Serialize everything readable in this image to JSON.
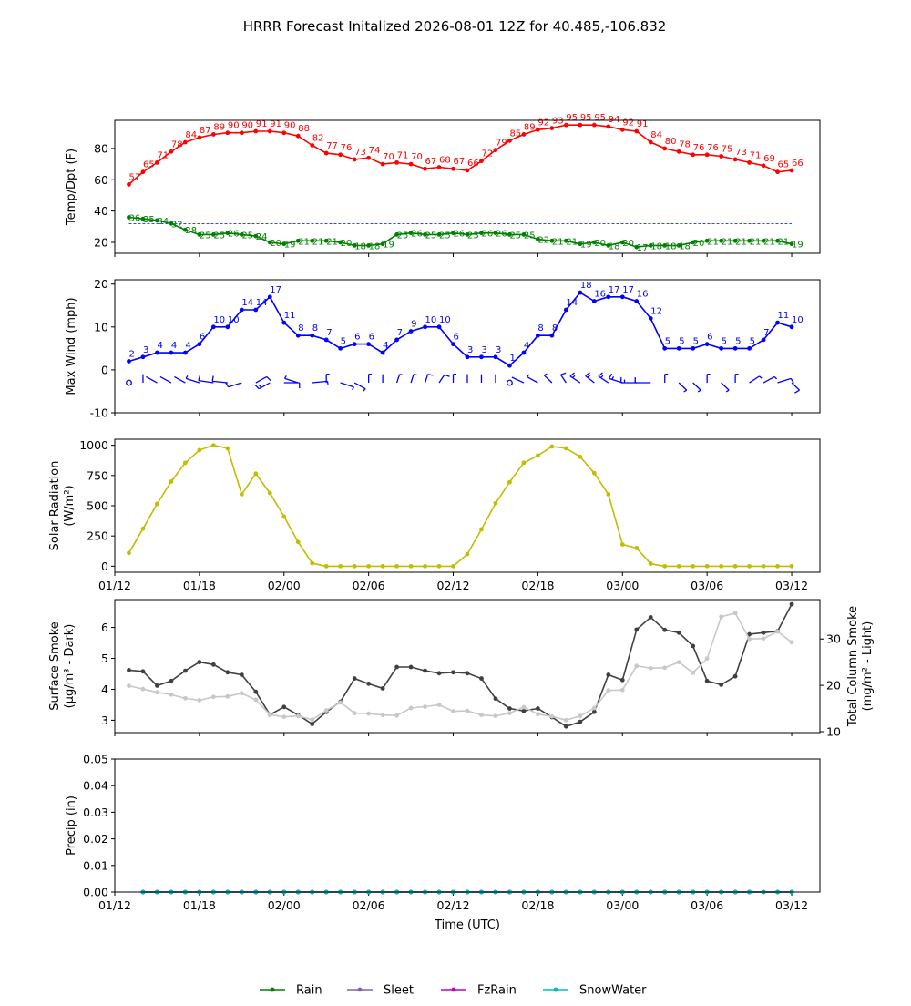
{
  "figure": {
    "title": "HRRR Forecast Initalized 2026-08-01 12Z for 40.485,-106.832"
  },
  "colors": {
    "temp": "#ff0000",
    "dewpoint": "#008000",
    "freeze_line": "#0000ff",
    "wind": "#0000ff",
    "solar": "#bfbf00",
    "smoke_dark": "#404040",
    "smoke_light": "#c8c8c8",
    "rain": "#008000",
    "sleet": "#8064a2",
    "fzrain": "#bf00bf",
    "snow": "#00bfbf"
  },
  "chart_data": [
    {
      "type": "line",
      "title": "",
      "xlabel": "",
      "ylabel": "Temp/Dpt (F)",
      "xlim": [
        0,
        50
      ],
      "ylim": [
        13,
        98
      ],
      "yticks": [
        20,
        40,
        60,
        80
      ],
      "reference_line": {
        "y": 32
      },
      "x": [
        1,
        2,
        3,
        4,
        5,
        6,
        7,
        8,
        9,
        10,
        11,
        12,
        13,
        14,
        15,
        16,
        17,
        18,
        19,
        20,
        21,
        22,
        23,
        24,
        25,
        26,
        27,
        28,
        29,
        30,
        31,
        32,
        33,
        34,
        35,
        36,
        37,
        38,
        39,
        40,
        41,
        42,
        43,
        44,
        45,
        46,
        47,
        48
      ],
      "series": [
        {
          "key": "temp",
          "values": [
            57,
            65,
            71,
            78,
            84,
            87,
            89,
            90,
            90,
            91,
            91,
            90,
            88,
            82,
            77,
            76,
            73,
            74,
            70,
            71,
            70,
            67,
            68,
            67,
            66,
            72,
            79,
            85,
            89,
            92,
            93,
            95,
            95,
            95,
            94,
            92,
            91,
            84,
            80,
            78,
            76,
            76,
            75,
            73,
            71,
            69,
            65,
            66
          ]
        },
        {
          "key": "dewpoint",
          "values": [
            36,
            35,
            34,
            32,
            28,
            25,
            25,
            26,
            25,
            24,
            20,
            19,
            21,
            21,
            21,
            20,
            18,
            18,
            19,
            25,
            26,
            25,
            25,
            26,
            25,
            26,
            26,
            25,
            25,
            22,
            21,
            21,
            19,
            20,
            18,
            20,
            17,
            18,
            18,
            18,
            20,
            21,
            21,
            21,
            21,
            21,
            21,
            19
          ]
        }
      ]
    },
    {
      "type": "line",
      "title": "",
      "xlabel": "",
      "ylabel": "Max Wind (mph)",
      "xlim": [
        0,
        50
      ],
      "ylim": [
        -10,
        21
      ],
      "yticks": [
        -10,
        0,
        10,
        20
      ],
      "x": [
        1,
        2,
        3,
        4,
        5,
        6,
        7,
        8,
        9,
        10,
        11,
        12,
        13,
        14,
        15,
        16,
        17,
        18,
        19,
        20,
        21,
        22,
        23,
        24,
        25,
        26,
        27,
        28,
        29,
        30,
        31,
        32,
        33,
        34,
        35,
        36,
        37,
        38,
        39,
        40,
        41,
        42,
        43,
        44,
        45,
        46,
        47,
        48
      ],
      "series": [
        {
          "key": "wind",
          "values": [
            2,
            3,
            4,
            4,
            4,
            6,
            10,
            10,
            14,
            14,
            17,
            11,
            8,
            8,
            7,
            5,
            6,
            6,
            4,
            7,
            9,
            10,
            10,
            6,
            3,
            3,
            3,
            1,
            4,
            8,
            8,
            14,
            18,
            16,
            17,
            17,
            16,
            12,
            5,
            5,
            5,
            6,
            5,
            5,
            5,
            7,
            11,
            10
          ]
        }
      ],
      "wind_direction_deg": [
        0,
        0,
        315,
        315,
        315,
        300,
        285,
        280,
        240,
        45,
        225,
        90,
        300,
        80,
        0,
        120,
        135,
        0,
        0,
        10,
        10,
        10,
        20,
        0,
        0,
        0,
        0,
        0,
        310,
        315,
        330,
        340,
        320,
        325,
        320,
        300,
        270,
        270,
        0,
        150,
        150,
        0,
        150,
        0,
        40,
        45,
        60,
        150
      ]
    },
    {
      "type": "line",
      "title": "",
      "xlabel": "",
      "ylabel": "Solar Radiation (W/m²)",
      "xlim": [
        0,
        50
      ],
      "ylim": [
        -50,
        1050
      ],
      "yticks": [
        0,
        250,
        500,
        750,
        1000
      ],
      "x": [
        1,
        2,
        3,
        4,
        5,
        6,
        7,
        8,
        9,
        10,
        11,
        12,
        13,
        14,
        15,
        16,
        17,
        18,
        19,
        20,
        21,
        22,
        23,
        24,
        25,
        26,
        27,
        28,
        29,
        30,
        31,
        32,
        33,
        34,
        35,
        36,
        37,
        38,
        39,
        40,
        41,
        42,
        43,
        44,
        45,
        46,
        47,
        48
      ],
      "series": [
        {
          "key": "solar",
          "values": [
            110,
            310,
            515,
            700,
            855,
            960,
            1000,
            975,
            595,
            765,
            605,
            410,
            200,
            25,
            0,
            0,
            0,
            0,
            0,
            0,
            0,
            0,
            0,
            0,
            100,
            305,
            520,
            695,
            855,
            915,
            990,
            975,
            905,
            770,
            595,
            180,
            150,
            20,
            0,
            0,
            0,
            0,
            0,
            0,
            0,
            0,
            0,
            0
          ]
        }
      ],
      "xticks": [
        0,
        6,
        12,
        18,
        24,
        30,
        36,
        42,
        48
      ],
      "xtick_labels": [
        "01/12",
        "01/18",
        "02/00",
        "02/06",
        "02/12",
        "02/18",
        "03/00",
        "03/06",
        "03/12"
      ]
    },
    {
      "type": "line",
      "title": "",
      "xlabel": "",
      "ylabel": "Surface Smoke (μg/m³ - Dark)",
      "ylabel_right": "Total Column Smoke (mg/m² - Light)",
      "xlim": [
        0,
        50
      ],
      "ylim": [
        2.6,
        6.9
      ],
      "yticks": [
        3,
        4,
        5,
        6
      ],
      "ylim_right": [
        9.8,
        38.5
      ],
      "yticks_right": [
        10,
        20,
        30
      ],
      "x": [
        1,
        2,
        3,
        4,
        5,
        6,
        7,
        8,
        9,
        10,
        11,
        12,
        13,
        14,
        15,
        16,
        17,
        18,
        19,
        20,
        21,
        22,
        23,
        24,
        25,
        26,
        27,
        28,
        29,
        30,
        31,
        32,
        33,
        34,
        35,
        36,
        37,
        38,
        39,
        40,
        41,
        42,
        43,
        44,
        45,
        46,
        47,
        48
      ],
      "series": [
        {
          "key": "smoke_dark",
          "axis": "left",
          "values": [
            4.62,
            4.58,
            4.12,
            4.27,
            4.6,
            4.88,
            4.8,
            4.55,
            4.47,
            3.92,
            3.18,
            3.43,
            3.17,
            2.88,
            3.27,
            3.6,
            4.35,
            4.18,
            4.03,
            4.72,
            4.72,
            4.6,
            4.52,
            4.55,
            4.52,
            4.35,
            3.7,
            3.38,
            3.3,
            3.38,
            3.1,
            2.8,
            2.95,
            3.27,
            4.47,
            4.3,
            5.93,
            6.33,
            5.92,
            5.83,
            5.4,
            4.27,
            4.15,
            4.42,
            5.78,
            5.83,
            5.88,
            6.75
          ]
        },
        {
          "key": "smoke_light",
          "axis": "right",
          "values": [
            19.9,
            19.2,
            18.5,
            18.0,
            17.2,
            16.8,
            17.5,
            17.6,
            18.3,
            16.9,
            13.7,
            13.2,
            13.4,
            12.6,
            14.6,
            16.3,
            14.0,
            13.9,
            13.6,
            13.5,
            15.1,
            15.4,
            15.8,
            14.4,
            14.5,
            13.6,
            13.4,
            14.0,
            15.3,
            13.8,
            13.3,
            12.5,
            13.4,
            15.1,
            18.9,
            19.0,
            24.2,
            23.7,
            23.8,
            25.0,
            22.7,
            25.8,
            34.8,
            35.6,
            30.0,
            30.1,
            31.6,
            29.3
          ]
        }
      ]
    },
    {
      "type": "line",
      "title": "",
      "xlabel": "Time (UTC)",
      "ylabel": "Precip (in)",
      "xlim": [
        0,
        50
      ],
      "ylim": [
        0,
        0.05
      ],
      "yticks": [
        0,
        0.01,
        0.02,
        0.03,
        0.04,
        0.05
      ],
      "ytick_labels": [
        "0.00",
        "0.01",
        "0.02",
        "0.03",
        "0.04",
        "0.05"
      ],
      "x": [
        2,
        3,
        4,
        5,
        6,
        7,
        8,
        9,
        10,
        11,
        12,
        13,
        14,
        15,
        16,
        17,
        18,
        19,
        20,
        21,
        22,
        23,
        24,
        25,
        26,
        27,
        28,
        29,
        30,
        31,
        32,
        33,
        34,
        35,
        36,
        37,
        38,
        39,
        40,
        41,
        42,
        43,
        44,
        45,
        46,
        47,
        48
      ],
      "series": [
        {
          "name": "Rain",
          "key": "rain",
          "values": [
            0,
            0,
            0,
            0,
            0,
            0,
            0,
            0,
            0,
            0,
            0,
            0,
            0,
            0,
            0,
            0,
            0,
            0,
            0,
            0,
            0,
            0,
            0,
            0,
            0,
            0,
            0,
            0,
            0,
            0,
            0,
            0,
            0,
            0,
            0,
            0,
            0,
            0,
            0,
            0,
            0,
            0,
            0,
            0,
            0,
            0,
            0
          ]
        },
        {
          "name": "Sleet",
          "key": "sleet",
          "values": [
            0,
            0,
            0,
            0,
            0,
            0,
            0,
            0,
            0,
            0,
            0,
            0,
            0,
            0,
            0,
            0,
            0,
            0,
            0,
            0,
            0,
            0,
            0,
            0,
            0,
            0,
            0,
            0,
            0,
            0,
            0,
            0,
            0,
            0,
            0,
            0,
            0,
            0,
            0,
            0,
            0,
            0,
            0,
            0,
            0,
            0,
            0
          ]
        },
        {
          "name": "FzRain",
          "key": "fzrain",
          "values": [
            0,
            0,
            0,
            0,
            0,
            0,
            0,
            0,
            0,
            0,
            0,
            0,
            0,
            0,
            0,
            0,
            0,
            0,
            0,
            0,
            0,
            0,
            0,
            0,
            0,
            0,
            0,
            0,
            0,
            0,
            0,
            0,
            0,
            0,
            0,
            0,
            0,
            0,
            0,
            0,
            0,
            0,
            0,
            0,
            0,
            0,
            0
          ]
        },
        {
          "name": "SnowWater",
          "key": "snow",
          "values": [
            0,
            0,
            0,
            0,
            0,
            0,
            0,
            0,
            0,
            0,
            0,
            0,
            0,
            0,
            0,
            0,
            0,
            0,
            0,
            0,
            0,
            0,
            0,
            0,
            0,
            0,
            0,
            0,
            0,
            0,
            0,
            0,
            0,
            0,
            0,
            0,
            0,
            0,
            0,
            0,
            0,
            0,
            0,
            0,
            0,
            0,
            0
          ]
        }
      ],
      "xticks": [
        0,
        6,
        12,
        18,
        24,
        30,
        36,
        42,
        48
      ],
      "xtick_labels": [
        "01/12",
        "01/18",
        "02/00",
        "02/06",
        "02/12",
        "02/18",
        "03/00",
        "03/06",
        "03/12"
      ],
      "legend": "bottom-center"
    }
  ]
}
